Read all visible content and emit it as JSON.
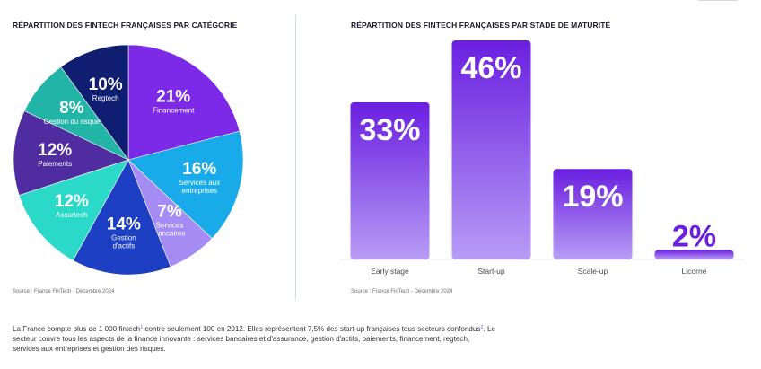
{
  "chart_data": [
    {
      "type": "pie",
      "title": "RÉPARTITION DES FINTECH FRANÇAISES PAR CATÉGORIE",
      "source": "Source : France FinTech - Décembre 2024",
      "unit": "%",
      "slices": [
        {
          "label": "Financement",
          "label_lines": [
            "Financement"
          ],
          "value": 21,
          "value_text": "21%",
          "color": "#7c2ae8"
        },
        {
          "label": "Services aux entreprises",
          "label_lines": [
            "Services aux",
            "entreprises"
          ],
          "value": 16,
          "value_text": "16%",
          "color": "#19aaea"
        },
        {
          "label": "Services bancaires",
          "label_lines": [
            "Services",
            "bancaires"
          ],
          "value": 7,
          "value_text": "7%",
          "color": "#a58cf5"
        },
        {
          "label": "Gestion d'actifs",
          "label_lines": [
            "Gestion",
            "d'actifs"
          ],
          "value": 14,
          "value_text": "14%",
          "color": "#1d3fc4"
        },
        {
          "label": "Assurtech",
          "label_lines": [
            "Assurtech"
          ],
          "value": 12,
          "value_text": "12%",
          "color": "#2bd9c8"
        },
        {
          "label": "Paiements",
          "label_lines": [
            "Paiements"
          ],
          "value": 12,
          "value_text": "12%",
          "color": "#4f2ca0"
        },
        {
          "label": "Gestion du risque",
          "label_lines": [
            "Gestion du risque"
          ],
          "value": 8,
          "value_text": "8%",
          "color": "#22b5a7"
        },
        {
          "label": "Regtech",
          "label_lines": [
            "Regtech"
          ],
          "value": 10,
          "value_text": "10%",
          "color": "#101e72"
        }
      ]
    },
    {
      "type": "bar",
      "title": "RÉPARTITION DES FINTECH FRANÇAISES PAR STADE DE MATURITÉ",
      "source": "Source : France FinTech - Décembre 2024",
      "unit": "%",
      "ylim": [
        0,
        46
      ],
      "categories": [
        "Early stage",
        "Start-up",
        "Scale-up",
        "Licorne"
      ],
      "values": [
        33,
        46,
        19,
        2
      ],
      "value_labels": [
        "33%",
        "46%",
        "19%",
        "2%"
      ],
      "colors": {
        "top": "#6a1fe0",
        "bottom": "#b79cf5"
      }
    }
  ],
  "paragraph": {
    "part1": "La France compte plus de 1 000 fintech",
    "ref1": "1",
    "part2": " contre seulement 100 en 2012. Elles représentent 7,5% des start-up françaises tous secteurs confondus",
    "ref2": "2",
    "part3": ". Le secteur couvre tous les aspects de la finance innovante : services bancaires et d'assurance, gestion d'actifs, paiements, financement, regtech, services aux entreprises et gestion des risques."
  }
}
